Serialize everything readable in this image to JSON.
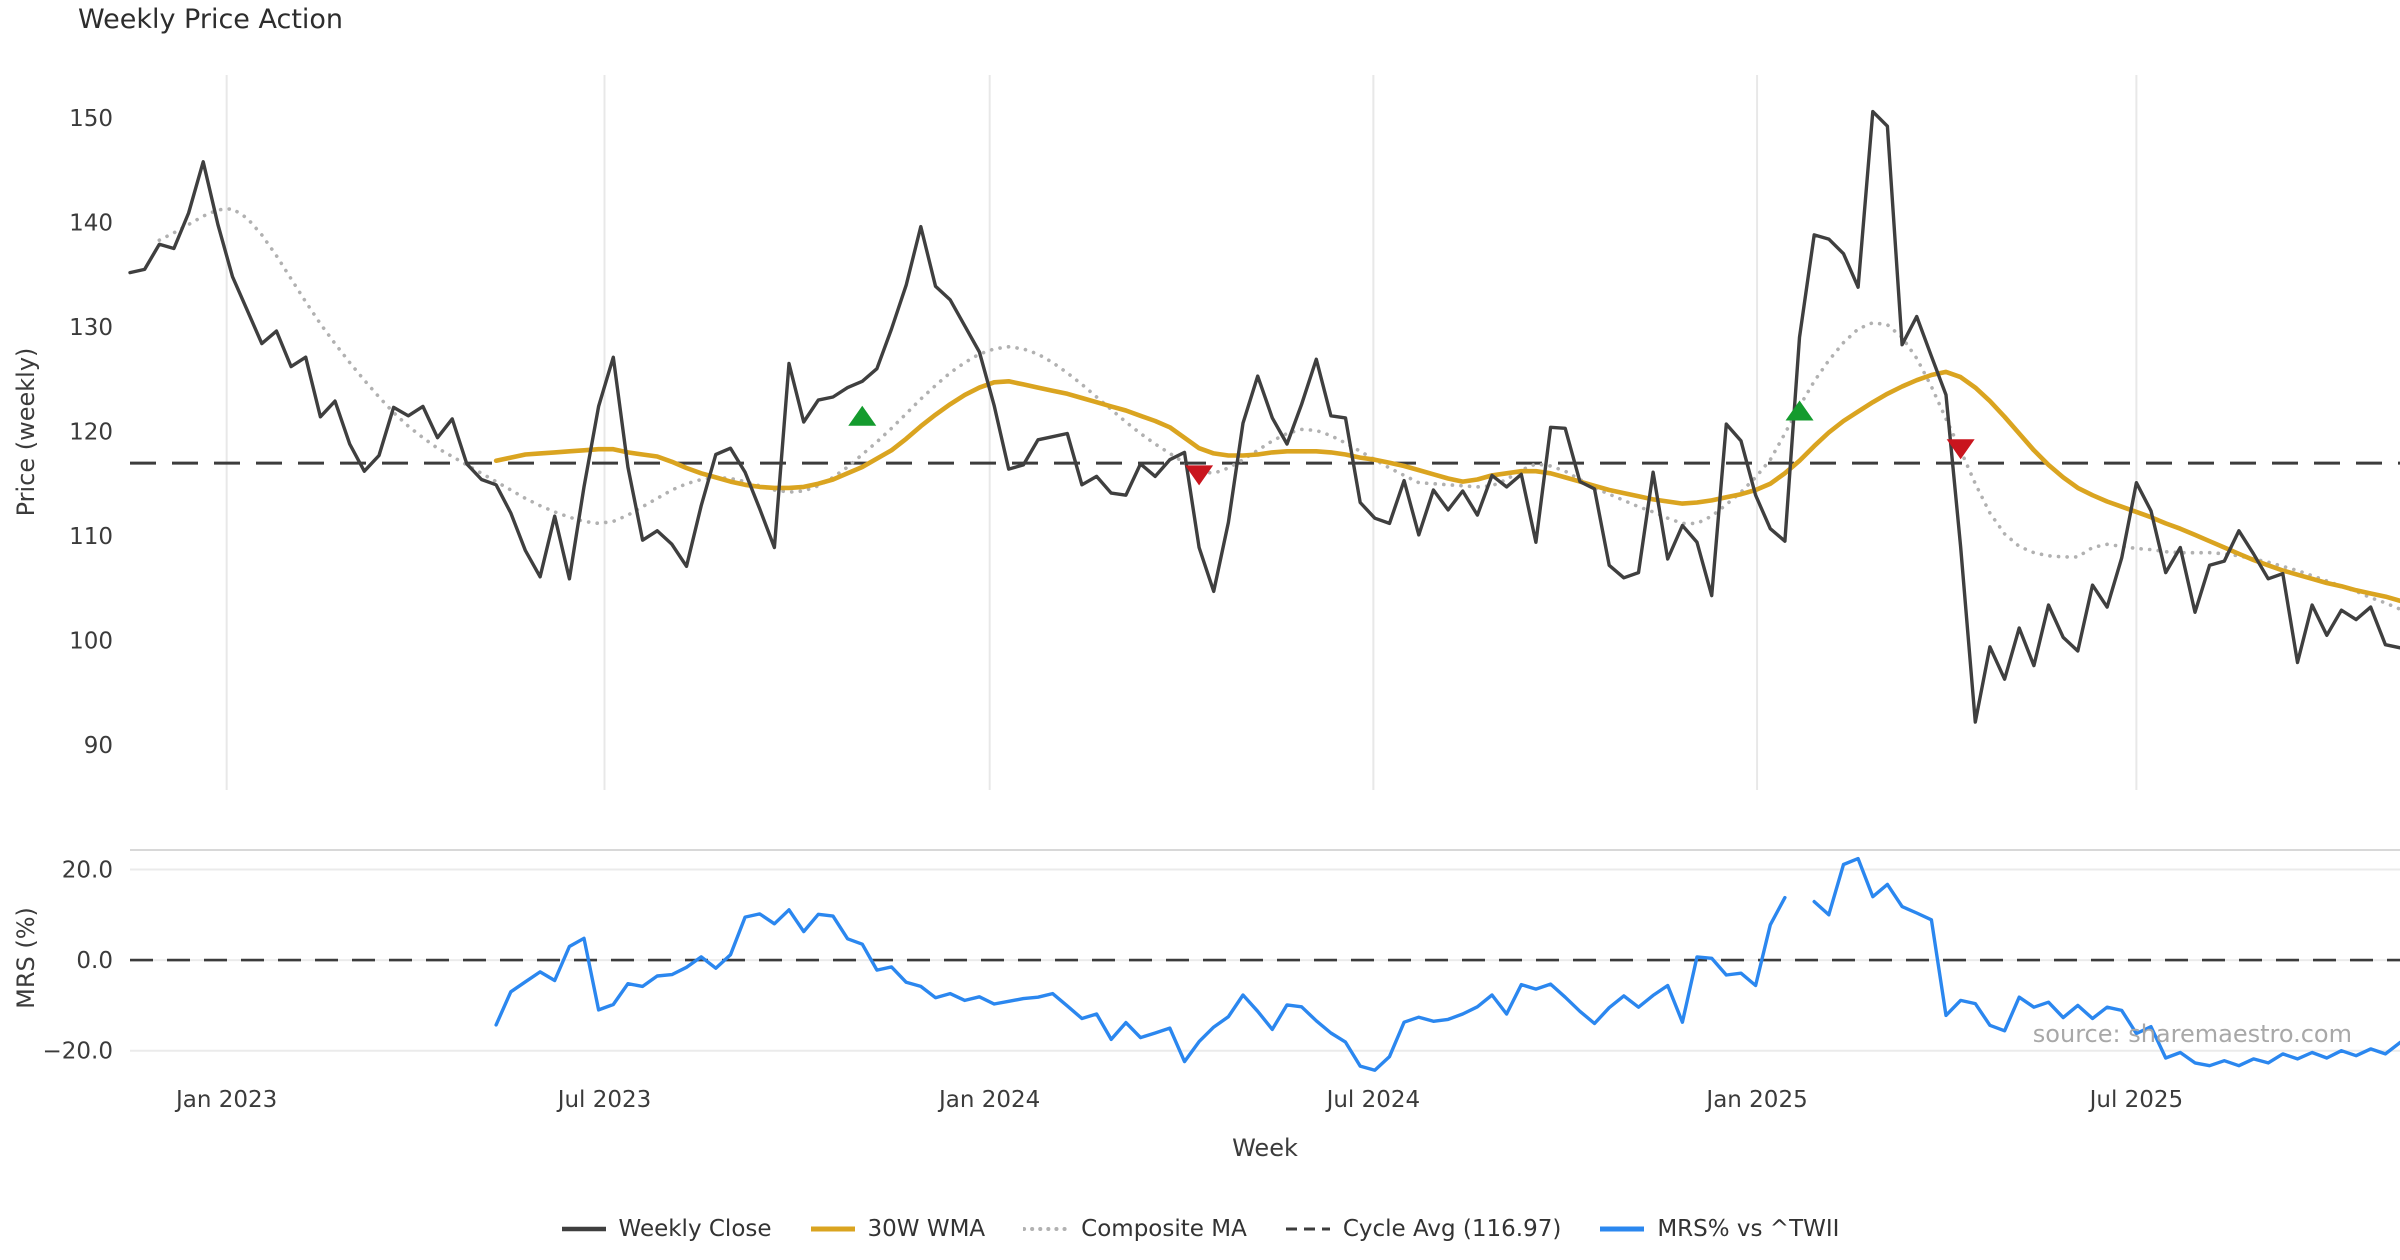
{
  "title": "Weekly Price Action",
  "watermark": "source: sharemaestro.com",
  "legend": [
    {
      "label": "Weekly Close",
      "color": "#3f3f3f",
      "style": "solid",
      "width": 4.5
    },
    {
      "label": "30W WMA",
      "color": "#daa420",
      "style": "solid",
      "width": 5
    },
    {
      "label": "Composite MA",
      "color": "#b1b1b1",
      "style": "dotted",
      "width": 4
    },
    {
      "label": "Cycle Avg (116.97)",
      "color": "#3c3c3c",
      "style": "dashed",
      "width": 3
    },
    {
      "label": "MRS% vs ^TWII",
      "color": "#2b87ef",
      "style": "solid",
      "width": 5
    }
  ],
  "chart_data": {
    "type": "line",
    "title": "Weekly Price Action",
    "x_axis": {
      "label": "Week",
      "unit": "weekly index from mid-Nov 2022",
      "ticks": [
        {
          "i": 6.6,
          "label": "Jan 2023"
        },
        {
          "i": 32.4,
          "label": "Jul 2023"
        },
        {
          "i": 58.7,
          "label": "Jan 2024"
        },
        {
          "i": 84.9,
          "label": "Jul 2024"
        },
        {
          "i": 111.1,
          "label": "Jan 2025"
        },
        {
          "i": 137.0,
          "label": "Jul 2025"
        }
      ]
    },
    "panels": [
      {
        "id": "price",
        "ylabel": "Price (weekly)",
        "ylim": [
          85.7,
          154.1
        ],
        "yticks": [
          {
            "v": 90,
            "label": "90"
          },
          {
            "v": 100,
            "label": "100"
          },
          {
            "v": 110,
            "label": "110"
          },
          {
            "v": 120,
            "label": "120"
          },
          {
            "v": 130,
            "label": "130"
          },
          {
            "v": 140,
            "label": "140"
          },
          {
            "v": 150,
            "label": "150"
          }
        ],
        "grid": "vertical",
        "ref_line": {
          "name": "Cycle Avg",
          "value": 116.97,
          "color": "#3c3c3c",
          "style": "dashed"
        },
        "series": [
          {
            "name": "Composite MA",
            "color": "#b1b1b1",
            "style": "dotted",
            "width": 3.6,
            "start_index": 2,
            "values": [
              138.3,
              139.0,
              139.8,
              140.6,
              141.2,
              141.3,
              140.4,
              138.8,
              136.8,
              134.6,
              132.4,
              130.3,
              128.4,
              126.6,
              124.9,
              123.3,
              121.8,
              120.5,
              119.4,
              118.4,
              117.6,
              116.8,
              116.0,
              115.2,
              114.4,
              113.6,
              112.9,
              112.3,
              111.8,
              111.4,
              111.2,
              111.4,
              112.0,
              112.8,
              113.6,
              114.4,
              115.0,
              115.4,
              115.6,
              115.5,
              115.2,
              114.8,
              114.4,
              114.2,
              114.3,
              114.8,
              115.6,
              116.6,
              117.8,
              119.0,
              120.3,
              121.7,
              123.1,
              124.4,
              125.6,
              126.6,
              127.4,
              127.9,
              128.1,
              127.9,
              127.4,
              126.6,
              125.6,
              124.5,
              123.3,
              122.1,
              120.9,
              119.8,
              118.8,
              117.9,
              117.0,
              116.2,
              116.0,
              116.5,
              117.3,
              118.2,
              119.1,
              119.8,
              120.2,
              120.1,
              119.6,
              118.9,
              118.1,
              117.3,
              116.5,
              115.8,
              115.1,
              115.0,
              114.9,
              114.8,
              114.7,
              114.8,
              115.4,
              116.3,
              116.9,
              116.7,
              116.2,
              115.4,
              114.6,
              114.0,
              113.4,
              112.8,
              112.3,
              111.7,
              111.2,
              111.2,
              111.9,
              113.0,
              114.2,
              115.6,
              117.3,
              119.8,
              122.4,
              124.8,
              126.8,
              128.5,
              129.8,
              130.4,
              130.2,
              129.0,
              127.0,
              124.3,
              121.2,
              118.2,
              115.0,
              112.2,
              110.2,
              109.0,
              108.4,
              108.1,
              108.0,
              108.0,
              108.9,
              109.2,
              109.0,
              108.8,
              108.7,
              108.5,
              108.4,
              108.4,
              108.4,
              108.3,
              108.1,
              107.8,
              107.5,
              107.1,
              106.7,
              106.2,
              105.7,
              105.2,
              104.7,
              104.1,
              103.6,
              103.0
            ]
          },
          {
            "name": "30W WMA",
            "color": "#daa420",
            "style": "solid",
            "width": 4.6,
            "start_index": 25,
            "values": [
              117.2,
              117.5,
              117.8,
              117.9,
              118.0,
              118.1,
              118.2,
              118.3,
              118.3,
              118.0,
              117.8,
              117.6,
              117.1,
              116.5,
              116.0,
              115.6,
              115.2,
              114.9,
              114.7,
              114.6,
              114.6,
              114.7,
              115.0,
              115.4,
              116.0,
              116.6,
              117.4,
              118.2,
              119.3,
              120.5,
              121.6,
              122.6,
              123.5,
              124.2,
              124.7,
              124.8,
              124.5,
              124.2,
              123.9,
              123.6,
              123.2,
              122.8,
              122.4,
              122.0,
              121.5,
              121.0,
              120.4,
              119.4,
              118.4,
              117.9,
              117.7,
              117.7,
              117.8,
              118.0,
              118.1,
              118.1,
              118.1,
              118.0,
              117.8,
              117.5,
              117.3,
              117.0,
              116.7,
              116.3,
              115.9,
              115.5,
              115.2,
              115.4,
              115.8,
              116.0,
              116.2,
              116.2,
              116.0,
              115.6,
              115.2,
              114.8,
              114.4,
              114.1,
              113.8,
              113.5,
              113.3,
              113.1,
              113.2,
              113.4,
              113.7,
              114.0,
              114.4,
              115.0,
              116.0,
              117.2,
              118.6,
              119.9,
              121.0,
              121.9,
              122.8,
              123.6,
              124.3,
              124.9,
              125.4,
              125.7,
              125.2,
              124.2,
              122.9,
              121.4,
              119.8,
              118.2,
              116.8,
              115.6,
              114.6,
              113.9,
              113.3,
              112.8,
              112.3,
              111.8,
              111.2,
              110.7,
              110.1,
              109.5,
              108.9,
              108.3,
              107.7,
              107.2,
              106.7,
              106.3,
              105.9,
              105.5,
              105.2,
              104.8,
              104.5,
              104.2,
              103.8
            ]
          },
          {
            "name": "Weekly Close",
            "color": "#3f3f3f",
            "style": "solid",
            "width": 3.4,
            "start_index": 0,
            "values": [
              135.2,
              135.5,
              137.9,
              137.5,
              140.9,
              145.8,
              139.8,
              134.8,
              131.6,
              128.4,
              129.6,
              126.2,
              127.1,
              121.4,
              122.9,
              118.8,
              116.2,
              117.7,
              122.3,
              121.5,
              122.4,
              119.4,
              121.2,
              116.9,
              115.4,
              114.9,
              112.2,
              108.6,
              106.1,
              111.9,
              105.9,
              114.7,
              122.4,
              127.1,
              116.6,
              109.6,
              110.5,
              109.2,
              107.1,
              112.9,
              117.8,
              118.4,
              116.1,
              112.6,
              108.9,
              126.5,
              120.9,
              123.0,
              123.3,
              124.2,
              124.8,
              126.0,
              129.8,
              134.0,
              139.6,
              133.9,
              132.6,
              130.1,
              127.6,
              122.5,
              116.4,
              116.8,
              119.2,
              119.5,
              119.8,
              114.9,
              115.7,
              114.1,
              113.9,
              116.9,
              115.7,
              117.3,
              118.0,
              108.9,
              104.7,
              111.3,
              120.8,
              125.3,
              121.3,
              118.8,
              122.6,
              126.9,
              121.5,
              121.3,
              113.2,
              111.7,
              111.2,
              115.3,
              110.1,
              114.4,
              112.5,
              114.3,
              112.0,
              115.8,
              114.7,
              115.9,
              109.4,
              120.4,
              120.3,
              115.2,
              114.5,
              107.2,
              106.0,
              106.5,
              116.1,
              107.8,
              111.0,
              109.4,
              104.3,
              120.7,
              119.1,
              113.9,
              110.7,
              109.5,
              129.0,
              138.8,
              138.4,
              137.0,
              133.8,
              150.6,
              149.2,
              128.3,
              131.0,
              127.2,
              123.5,
              109.0,
              92.2,
              99.4,
              96.3,
              101.2,
              97.6,
              103.4,
              100.3,
              99.0,
              105.3,
              103.2,
              107.9,
              115.1,
              112.4,
              106.5,
              108.9,
              102.7,
              107.2,
              107.6,
              110.5,
              108.3,
              105.9,
              106.4,
              97.9,
              103.4,
              100.5,
              102.9,
              102.0,
              103.2,
              99.6,
              99.3
            ]
          }
        ],
        "markers": [
          {
            "shape": "triangle-up",
            "name": "buy-signal",
            "color": "#149b2e",
            "points": [
              {
                "i": 50,
                "v": 121.5
              },
              {
                "i": 114,
                "v": 122.0
              }
            ]
          },
          {
            "shape": "triangle-down",
            "name": "sell-signal",
            "color": "#c9151e",
            "points": [
              {
                "i": 73,
                "v": 115.8
              },
              {
                "i": 125,
                "v": 118.3
              }
            ]
          }
        ]
      },
      {
        "id": "mrs",
        "ylabel": "MRS (%)",
        "ylim": [
          -24.7,
          24.3
        ],
        "yticks": [
          {
            "v": 20,
            "label": "20.0"
          },
          {
            "v": 0,
            "label": "0.0"
          },
          {
            "v": -20,
            "label": "−20.0"
          }
        ],
        "grid": "horizontal",
        "ref_line": {
          "name": "zero",
          "value": 0,
          "color": "#3c3c3c",
          "style": "dashed"
        },
        "series": [
          {
            "name": "MRS% vs ^TWII",
            "color": "#2b87ef",
            "style": "solid",
            "width": 3.4,
            "start_index": 25,
            "values": [
              -14.3,
              -7.0,
              -4.8,
              -2.6,
              -4.5,
              3.0,
              4.8,
              -11.0,
              -9.8,
              -5.2,
              -5.8,
              -3.5,
              -3.2,
              -1.6,
              0.7,
              -1.8,
              1.2,
              9.5,
              10.2,
              8.0,
              11.1,
              6.3,
              10.1,
              9.7,
              4.7,
              3.5,
              -2.2,
              -1.5,
              -4.9,
              -5.8,
              -8.3,
              -7.4,
              -8.9,
              -8.1,
              -9.7,
              -9.1,
              -8.5,
              -8.2,
              -7.4,
              -10.1,
              -12.9,
              -11.9,
              -17.5,
              -13.8,
              -17.1,
              -16.1,
              -15.0,
              -22.4,
              -18.0,
              -14.8,
              -12.5,
              -7.7,
              -11.3,
              -15.3,
              -9.9,
              -10.3,
              -13.4,
              -16.1,
              -18.1,
              -23.4,
              -24.3,
              -21.3,
              -13.7,
              -12.6,
              -13.5,
              -13.1,
              -11.9,
              -10.3,
              -7.7,
              -11.9,
              -5.4,
              -6.4,
              -5.3,
              -8.2,
              -11.3,
              -14.0,
              -10.5,
              -7.9,
              -10.4,
              -7.8,
              -5.6,
              -13.7,
              0.7,
              0.4,
              -3.3,
              -2.9,
              -5.6,
              7.8,
              13.8,
              null,
              12.9,
              10.0,
              21.1,
              22.4,
              14.0,
              16.7,
              11.8,
              10.4,
              8.9,
              -12.2,
              -8.9,
              -9.6,
              -14.4,
              -15.6,
              -8.2,
              -10.4,
              -9.3,
              -12.7,
              -10.0,
              -12.9,
              -10.4,
              -11.1,
              -16.2,
              -14.7,
              -21.6,
              -20.4,
              -22.7,
              -23.3,
              -22.2,
              -23.3,
              -21.8,
              -22.7,
              -20.7,
              -21.8,
              -20.4,
              -21.6,
              -20.0,
              -21.1,
              -19.6,
              -20.7,
              -18.2
            ]
          }
        ]
      }
    ]
  }
}
